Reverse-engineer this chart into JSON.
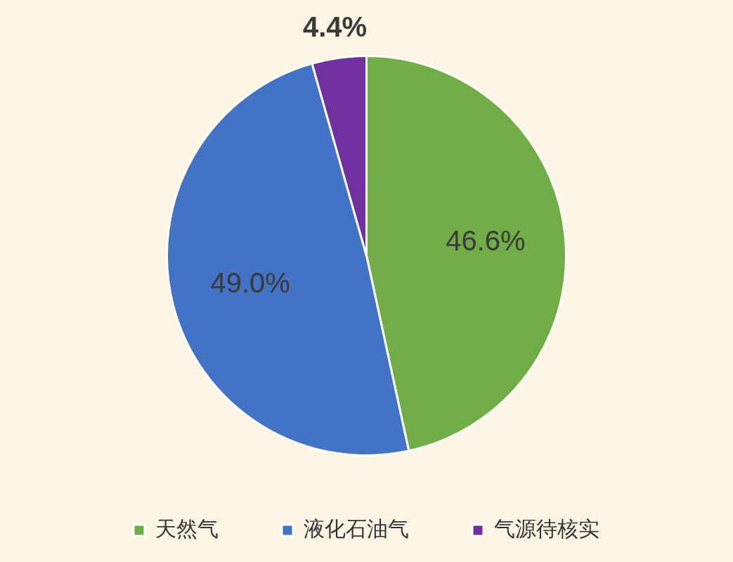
{
  "chart_data": {
    "type": "pie",
    "categories": [
      "天然气",
      "液化石油气",
      "气源待核实"
    ],
    "values": [
      46.6,
      49.0,
      4.4
    ],
    "colors": [
      "#70ad47",
      "#4472c4",
      "#7030a0"
    ],
    "value_labels": [
      "46.6%",
      "49.0%",
      "4.4%"
    ],
    "legend": "bottom"
  }
}
